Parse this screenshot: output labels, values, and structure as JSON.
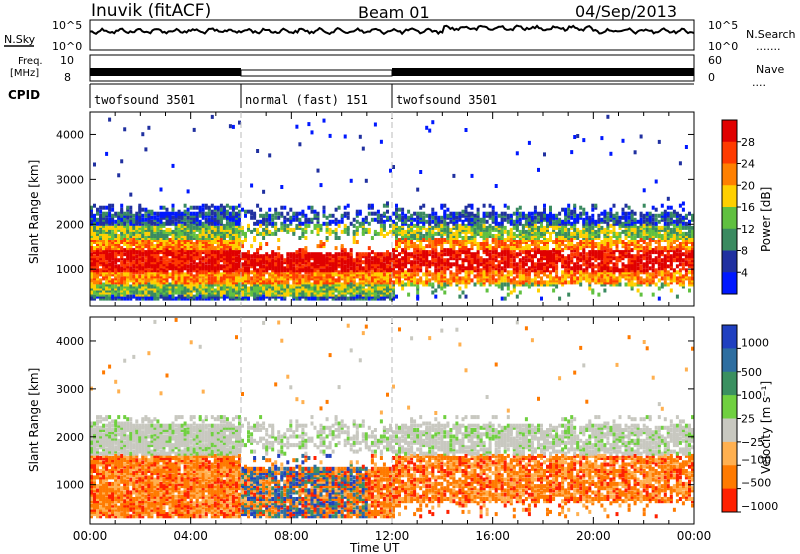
{
  "header": {
    "station": "Inuvik (fitACF)",
    "beam": "Beam 01",
    "date": "04/Sep/2013"
  },
  "status_panels": {
    "nsky": {
      "label": "N.Sky",
      "ticks": [
        "10^5",
        "10^0"
      ]
    },
    "nsearch": {
      "label": "N.Search",
      "ticks": [
        "10^5",
        "10^0"
      ],
      "dots": "......."
    },
    "freq": {
      "label_line1": "Freq.",
      "label_line2": "[MHz]",
      "ticks": [
        "10",
        "8"
      ]
    },
    "nave": {
      "label": "Nave",
      "ticks": [
        "60",
        "0"
      ],
      "dots": "...."
    },
    "cpid": {
      "label": "CPID"
    },
    "modes": [
      {
        "name": "twofsound 3501",
        "start": 0,
        "end": 6
      },
      {
        "name": "normal (fast) 151",
        "start": 6,
        "end": 12
      },
      {
        "name": "twofsound 3501",
        "start": 12,
        "end": 24
      }
    ]
  },
  "chart_data": [
    {
      "type": "heatmap",
      "panel": "Power",
      "xlabel": "",
      "ylabel": "Slant Range [km]",
      "xlim": [
        0,
        24
      ],
      "ylim": [
        180,
        4500
      ],
      "yticks": [
        1000,
        2000,
        3000,
        4000
      ],
      "colorbar": {
        "label": "Power [dB]",
        "ticks": [
          "28",
          "24",
          "20",
          "16",
          "12",
          "8",
          "4"
        ],
        "colors": [
          "#e00000",
          "#ff3b00",
          "#ff8000",
          "#ffd000",
          "#60c040",
          "#3a8a60",
          "#2030a0",
          "#0018ff"
        ]
      },
      "bands": [
        {
          "from": 0,
          "to": 6,
          "center": 1200,
          "spread": 700,
          "color_core": "#ff2000"
        },
        {
          "from": 6,
          "to": 12,
          "center": 1000,
          "spread": 500,
          "color_core": "#ff2000"
        },
        {
          "from": 12,
          "to": 24,
          "center": 1200,
          "spread": 800,
          "color_core": "#ff8000"
        }
      ]
    },
    {
      "type": "heatmap",
      "panel": "Velocity",
      "xlabel": "Time UT",
      "ylabel": "Slant Range [km]",
      "xlim": [
        0,
        24
      ],
      "ylim": [
        180,
        4500
      ],
      "xticks": [
        "00:00",
        "04:00",
        "08:00",
        "12:00",
        "16:00",
        "20:00",
        "00:00"
      ],
      "yticks": [
        1000,
        2000,
        3000,
        4000
      ],
      "colorbar": {
        "label": "Velocity [m s⁻¹]",
        "ticks": [
          "1000",
          "500",
          "100",
          "25",
          "−25",
          "−100",
          "−500",
          "−1000"
        ],
        "colors": [
          "#2040c0",
          "#2e6ea0",
          "#3a9060",
          "#70d040",
          "#c8c8c0",
          "#ffb050",
          "#ff7a00",
          "#ff2000"
        ]
      }
    }
  ]
}
